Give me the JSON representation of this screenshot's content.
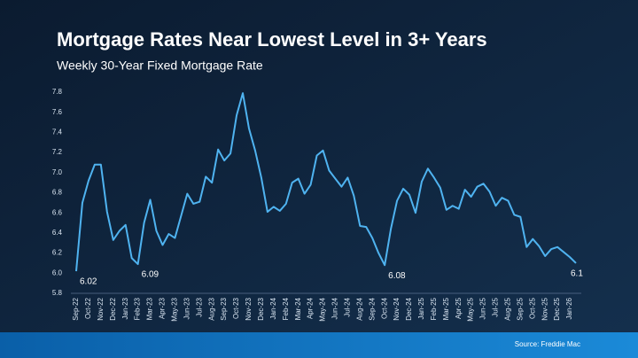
{
  "chart_data": {
    "type": "line",
    "title": "Mortgage Rates Near Lowest Level in 3+ Years",
    "subtitle": "Weekly 30-Year Fixed Mortgage Rate",
    "source": "Source: Freddie Mac",
    "categories": [
      "Sep-22",
      null,
      "Oct-22",
      null,
      "Nov-22",
      null,
      "Dec-22",
      null,
      "Jan-23",
      null,
      "Feb-23",
      null,
      "Mar-23",
      null,
      "Apr-23",
      null,
      "May-23",
      null,
      "Jun-23",
      null,
      "Jul-23",
      null,
      "Aug-23",
      null,
      "Sep-23",
      null,
      "Oct-23",
      null,
      "Nov-23",
      null,
      "Dec-23",
      null,
      "Jan-24",
      null,
      "Feb-24",
      null,
      "Mar-24",
      null,
      "Apr-24",
      null,
      "May-24",
      null,
      "Jun-24",
      null,
      "Jul-24",
      null,
      "Aug-24",
      null,
      "Sep-24",
      null,
      "Oct-24",
      null,
      "Nov-24",
      null,
      "Dec-24",
      null,
      "Jan-25",
      null,
      "Feb-25",
      null,
      "Mar-25",
      null,
      "Apr-25",
      null,
      "May-25",
      null,
      "Jun-25",
      null,
      "Jul-25",
      null,
      "Aug-25",
      null,
      "Sep-25",
      null,
      "Oct-25",
      null,
      "Nov-25",
      null,
      "Dec-25",
      null,
      "Jan-26",
      null
    ],
    "series": [
      {
        "name": "30-Year Fixed",
        "color": "#4fb3f0",
        "values": [
          6.02,
          6.7,
          6.92,
          7.08,
          7.08,
          6.61,
          6.33,
          6.42,
          6.48,
          6.15,
          6.09,
          6.5,
          6.73,
          6.42,
          6.28,
          6.39,
          6.35,
          6.57,
          6.79,
          6.69,
          6.71,
          6.96,
          6.9,
          7.23,
          7.12,
          7.19,
          7.57,
          7.79,
          7.44,
          7.22,
          6.95,
          6.61,
          6.66,
          6.62,
          6.69,
          6.9,
          6.94,
          6.79,
          6.88,
          7.17,
          7.22,
          7.02,
          6.94,
          6.86,
          6.95,
          6.77,
          6.47,
          6.46,
          6.35,
          6.2,
          6.08,
          6.44,
          6.72,
          6.84,
          6.78,
          6.6,
          6.91,
          7.04,
          6.95,
          6.85,
          6.63,
          6.67,
          6.64,
          6.83,
          6.76,
          6.86,
          6.89,
          6.81,
          6.67,
          6.75,
          6.72,
          6.58,
          6.56,
          6.26,
          6.34,
          6.27,
          6.17,
          6.24,
          6.26,
          6.21,
          6.16,
          6.1
        ],
        "value_labels": [
          "6.02",
          null,
          null,
          null,
          null,
          null,
          null,
          null,
          null,
          null,
          "6.09",
          null,
          null,
          null,
          null,
          null,
          null,
          null,
          null,
          null,
          null,
          null,
          null,
          null,
          null,
          null,
          null,
          null,
          null,
          null,
          null,
          null,
          null,
          null,
          null,
          null,
          null,
          null,
          null,
          null,
          null,
          null,
          null,
          null,
          null,
          null,
          null,
          null,
          null,
          null,
          "6.08",
          null,
          null,
          null,
          null,
          null,
          null,
          null,
          null,
          null,
          null,
          null,
          null,
          null,
          null,
          null,
          null,
          null,
          null,
          null,
          null,
          null,
          null,
          null,
          null,
          null,
          null,
          null,
          null,
          null,
          null,
          "6.1"
        ]
      }
    ],
    "ylim": [
      5.8,
      7.8
    ],
    "yticks": [
      5.8,
      {
        "value": 6.0,
        "label": "6.0"
      },
      6.2,
      6.4,
      6.6,
      6.8,
      {
        "value": 7.0,
        "label": "7.0"
      },
      7.2,
      7.4,
      7.6,
      7.8
    ],
    "grid": false
  }
}
